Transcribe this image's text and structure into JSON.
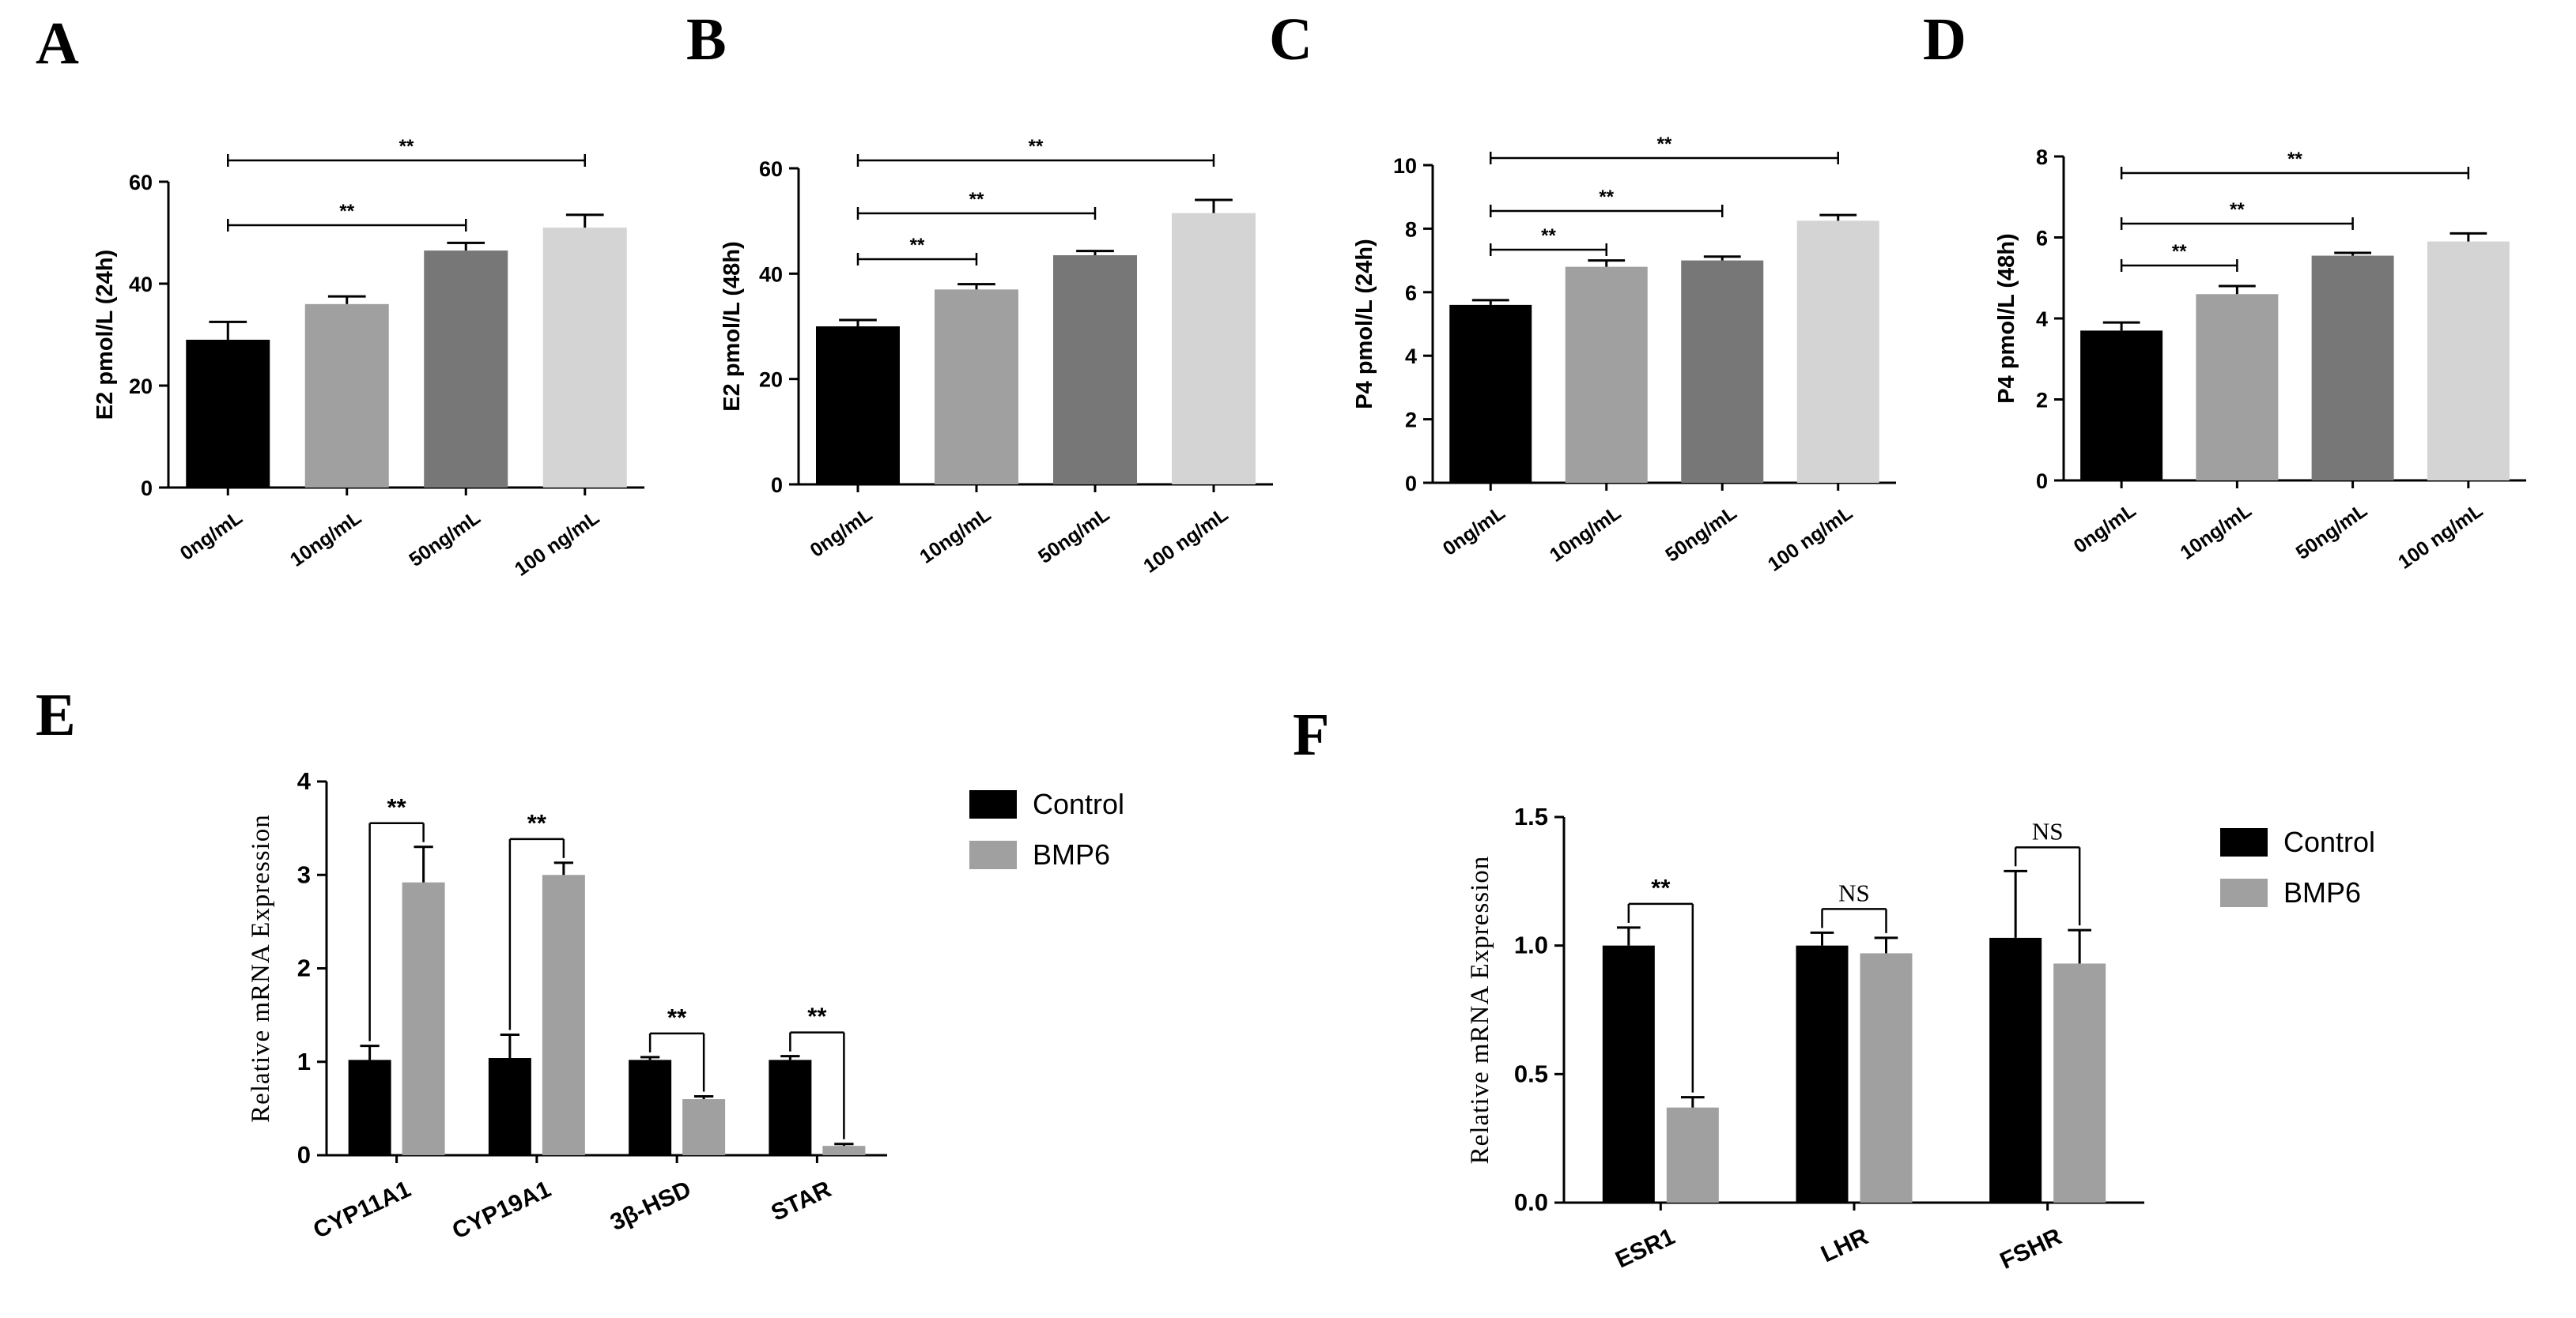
{
  "chart_data": [
    {
      "panel": "A",
      "type": "bar",
      "title": "",
      "xlabel": "",
      "ylabel": "E2 pmol/L (24h)",
      "ylim": [
        0,
        60
      ],
      "yticks": [
        0,
        20,
        40,
        60
      ],
      "categories": [
        "0ng/mL",
        "10ng/mL",
        "50ng/mL",
        "100 ng/mL"
      ],
      "values": [
        29,
        36,
        46.5,
        51
      ],
      "errors": [
        3.5,
        1.5,
        1.5,
        2.5
      ],
      "colors": [
        "#000000",
        "#a0a0a0",
        "#777777",
        "#d4d4d4"
      ],
      "significance": [
        {
          "from": 0,
          "to": 3,
          "label": "**"
        },
        {
          "from": 0,
          "to": 2,
          "label": "**"
        }
      ]
    },
    {
      "panel": "B",
      "type": "bar",
      "title": "",
      "xlabel": "",
      "ylabel": "E2 pmol/L (48h)",
      "ylim": [
        0,
        60
      ],
      "yticks": [
        0,
        20,
        40,
        60
      ],
      "categories": [
        "0ng/mL",
        "10ng/mL",
        "50ng/mL",
        "100 ng/mL"
      ],
      "values": [
        30,
        37,
        43.5,
        51.5
      ],
      "errors": [
        1.2,
        1.0,
        0.8,
        2.5
      ],
      "colors": [
        "#000000",
        "#a0a0a0",
        "#777777",
        "#d4d4d4"
      ],
      "significance": [
        {
          "from": 0,
          "to": 3,
          "label": "**"
        },
        {
          "from": 0,
          "to": 2,
          "label": "**"
        },
        {
          "from": 0,
          "to": 1,
          "label": "**"
        }
      ]
    },
    {
      "panel": "C",
      "type": "bar",
      "title": "",
      "xlabel": "",
      "ylabel": "P4 pmol/L (24h)",
      "ylim": [
        0,
        10
      ],
      "yticks": [
        0,
        2,
        4,
        6,
        8,
        10
      ],
      "categories": [
        "0ng/mL",
        "10ng/mL",
        "50ng/mL",
        "100 ng/mL"
      ],
      "values": [
        5.6,
        6.8,
        7.0,
        8.25
      ],
      "errors": [
        0.15,
        0.2,
        0.12,
        0.18
      ],
      "colors": [
        "#000000",
        "#a0a0a0",
        "#777777",
        "#d4d4d4"
      ],
      "significance": [
        {
          "from": 0,
          "to": 3,
          "label": "**"
        },
        {
          "from": 0,
          "to": 2,
          "label": "**"
        },
        {
          "from": 0,
          "to": 1,
          "label": "**"
        }
      ]
    },
    {
      "panel": "D",
      "type": "bar",
      "title": "",
      "xlabel": "",
      "ylabel": "P4 pmol/L (48h)",
      "ylim": [
        0,
        8
      ],
      "yticks": [
        0,
        2,
        4,
        6,
        8
      ],
      "categories": [
        "0ng/mL",
        "10ng/mL",
        "50ng/mL",
        "100 ng/mL"
      ],
      "values": [
        3.7,
        4.6,
        5.55,
        5.9
      ],
      "errors": [
        0.2,
        0.2,
        0.07,
        0.2
      ],
      "colors": [
        "#000000",
        "#a0a0a0",
        "#777777",
        "#d4d4d4"
      ],
      "significance": [
        {
          "from": 0,
          "to": 3,
          "label": "**"
        },
        {
          "from": 0,
          "to": 2,
          "label": "**"
        },
        {
          "from": 0,
          "to": 1,
          "label": "**"
        }
      ]
    },
    {
      "panel": "E",
      "type": "bar",
      "title": "",
      "xlabel": "",
      "ylabel": "Relative mRNA Expression",
      "ylim": [
        0,
        4
      ],
      "yticks": [
        0,
        1,
        2,
        3,
        4
      ],
      "categories": [
        "CYP11A1",
        "CYP19A1",
        "3β-HSD",
        "STAR"
      ],
      "series": [
        {
          "name": "Control",
          "color": "#000000",
          "values": [
            1.02,
            1.04,
            1.02,
            1.02
          ],
          "errors": [
            0.15,
            0.25,
            0.03,
            0.04
          ]
        },
        {
          "name": "BMP6",
          "color": "#a0a0a0",
          "values": [
            2.92,
            3.0,
            0.6,
            0.1
          ],
          "errors": [
            0.38,
            0.13,
            0.03,
            0.02
          ]
        }
      ],
      "significance": [
        {
          "category": 0,
          "label": "**"
        },
        {
          "category": 1,
          "label": "**"
        },
        {
          "category": 2,
          "label": "**"
        },
        {
          "category": 3,
          "label": "**"
        }
      ],
      "legend": "right"
    },
    {
      "panel": "F",
      "type": "bar",
      "title": "",
      "xlabel": "",
      "ylabel": "Relative mRNA Expression",
      "ylim": [
        0,
        1.5
      ],
      "yticks": [
        0.0,
        0.5,
        1.0,
        1.5
      ],
      "yticklabels": [
        "0.0",
        "0.5",
        "1.0",
        "1.5"
      ],
      "categories": [
        "ESR1",
        "LHR",
        "FSHR"
      ],
      "series": [
        {
          "name": "Control",
          "color": "#000000",
          "values": [
            1.0,
            1.0,
            1.03
          ],
          "errors": [
            0.07,
            0.05,
            0.26
          ]
        },
        {
          "name": "BMP6",
          "color": "#a0a0a0",
          "values": [
            0.37,
            0.97,
            0.93
          ],
          "errors": [
            0.04,
            0.06,
            0.13
          ]
        }
      ],
      "significance": [
        {
          "category": 0,
          "label": "**"
        },
        {
          "category": 1,
          "label": "NS"
        },
        {
          "category": 2,
          "label": "NS"
        }
      ],
      "legend": "right"
    }
  ]
}
